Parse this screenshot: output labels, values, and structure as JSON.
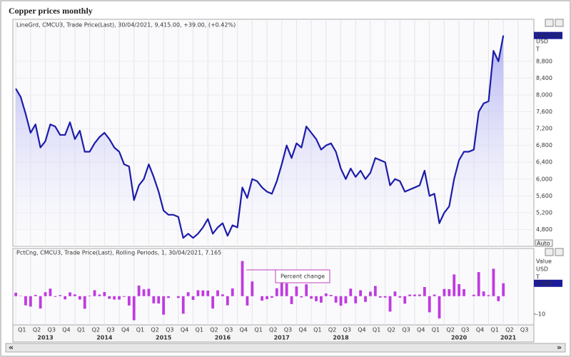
{
  "title": "Copper prices monthly",
  "chart_data": [
    {
      "type": "line",
      "legend": "LineGrd, CMCU3, Trade Price(Last), 30/04/2021, 9,415.00, +39.00, (+0.42%)",
      "last_value_label": "9,415.00",
      "axis_unit": "USD",
      "axis_unit2": "T",
      "button": "Auto",
      "color": "#1c1ca8",
      "values": [
        8150,
        7950,
        7550,
        7100,
        7300,
        6750,
        6900,
        7300,
        7250,
        7050,
        7050,
        7350,
        6950,
        7150,
        6650,
        6650,
        6850,
        7000,
        7100,
        6950,
        6750,
        6650,
        6350,
        6300,
        5500,
        5850,
        6000,
        6350,
        6050,
        5700,
        5250,
        5150,
        5150,
        5100,
        4600,
        4700,
        4600,
        4700,
        4850,
        5050,
        4700,
        4850,
        4950,
        4650,
        4900,
        4850,
        5800,
        5550,
        6000,
        5950,
        5800,
        5700,
        5650,
        5950,
        6350,
        6800,
        6500,
        6850,
        6750,
        7250,
        7100,
        6950,
        6700,
        6800,
        6850,
        6650,
        6250,
        6000,
        6250,
        6050,
        6200,
        6000,
        6150,
        6500,
        6450,
        6400,
        5850,
        6000,
        5950,
        5700,
        5750,
        5800,
        5850,
        6200,
        5600,
        5650,
        4950,
        5200,
        5350,
        6000,
        6450,
        6650,
        6650,
        6700,
        7600,
        7800,
        7850,
        9050,
        8800,
        9415
      ],
      "xlim": [
        -0.6,
        105.2
      ],
      "ylim": [
        4400,
        9800
      ],
      "yticks": [
        {
          "value": 4800,
          "label": "4,800"
        },
        {
          "value": 5200,
          "label": "5,200"
        },
        {
          "value": 5600,
          "label": "5,600"
        },
        {
          "value": 6000,
          "label": "6,000"
        },
        {
          "value": 6400,
          "label": "6,400"
        },
        {
          "value": 6800,
          "label": "6,800"
        },
        {
          "value": 7200,
          "label": "7,200"
        },
        {
          "value": 7600,
          "label": "7,600"
        },
        {
          "value": 8000,
          "label": "8,000"
        },
        {
          "value": 8400,
          "label": "8,400"
        },
        {
          "value": 8800,
          "label": "8,800"
        }
      ]
    },
    {
      "type": "bar",
      "legend": "PctCng, CMCU3, Trade Price(Last), Rolling Periods, 1, 30/04/2021, 7.165",
      "last_value_label": "7.165",
      "axis_title": "Value",
      "axis_unit": "USD",
      "axis_unit2": "T",
      "annotation": "Percent change",
      "color": "#c03ae0",
      "values": [
        1.9,
        0.2,
        -5.1,
        -5.8,
        0.7,
        -6.9,
        2.2,
        4.2,
        -0.4,
        0.6,
        -1.8,
        2.1,
        1.0,
        -1.9,
        -7.0,
        0.3,
        3.3,
        0.9,
        2.3,
        -1.5,
        -1.9,
        -1.9,
        -0.4,
        -5.2,
        -13.4,
        5.9,
        3.8,
        4.1,
        -4.0,
        -4.1,
        -10.3,
        -1.0,
        0,
        -1.0,
        -9.8,
        2.2,
        -2.1,
        3.3,
        3.2,
        3.1,
        -6.9,
        3.2,
        1.0,
        -5.1,
        4.3,
        0,
        19.6,
        -5.2,
        8.2,
        0,
        -2.5,
        -1.7,
        -0.9,
        4.4,
        7.6,
        7.1,
        -4.4,
        5.4,
        -0.7,
        6.6,
        -1.4,
        -2.8,
        -3.6,
        1.5,
        0.7,
        -3.6,
        -5.3,
        -4.0,
        4.2,
        -4.0,
        3.3,
        -3.2,
        2.5,
        5.7,
        -0.8,
        -0.8,
        -8.6,
        2.6,
        -0.8,
        -4.2,
        0.9,
        0.9,
        0.9,
        5.1,
        -9.0,
        0.9,
        -12.4,
        4.0,
        3.9,
        12.1,
        6.7,
        3.9,
        0,
        0.8,
        13.4,
        2.6,
        0.6,
        15.3,
        -2.8,
        7.165
      ],
      "xlim": [
        -0.6,
        105.2
      ],
      "ylim": [
        -16,
        21
      ],
      "yticks": [
        -10
      ],
      "xticks": [
        {
          "value": 0,
          "label": "Q1"
        },
        {
          "value": 3,
          "label": "Q2"
        },
        {
          "value": 6,
          "label": "Q3"
        },
        {
          "value": 9,
          "label": "Q4"
        },
        {
          "value": 12,
          "label": "Q1"
        },
        {
          "value": 15,
          "label": "Q2"
        },
        {
          "value": 18,
          "label": "Q3"
        },
        {
          "value": 21,
          "label": "Q4"
        },
        {
          "value": 24,
          "label": "Q1"
        },
        {
          "value": 27,
          "label": "Q2"
        },
        {
          "value": 30,
          "label": "Q3"
        },
        {
          "value": 33,
          "label": "Q4"
        },
        {
          "value": 36,
          "label": "Q1"
        },
        {
          "value": 39,
          "label": "Q2"
        },
        {
          "value": 42,
          "label": "Q3"
        },
        {
          "value": 45,
          "label": "Q4"
        },
        {
          "value": 48,
          "label": "Q1"
        },
        {
          "value": 51,
          "label": "Q2"
        },
        {
          "value": 54,
          "label": "Q3"
        },
        {
          "value": 57,
          "label": "Q4"
        },
        {
          "value": 60,
          "label": "Q1"
        },
        {
          "value": 63,
          "label": "Q2"
        },
        {
          "value": 66,
          "label": "Q3"
        },
        {
          "value": 69,
          "label": "Q4"
        },
        {
          "value": 72,
          "label": "Q1"
        },
        {
          "value": 75,
          "label": "Q2"
        },
        {
          "value": 78,
          "label": "Q3"
        },
        {
          "value": 81,
          "label": "Q4"
        },
        {
          "value": 84,
          "label": "Q1"
        },
        {
          "value": 87,
          "label": "Q2"
        },
        {
          "value": 90,
          "label": "Q3"
        },
        {
          "value": 93,
          "label": "Q4"
        },
        {
          "value": 96,
          "label": "Q1"
        },
        {
          "value": 99,
          "label": "Q2"
        },
        {
          "value": 102,
          "label": "Q3"
        }
      ],
      "year_ticks": [
        {
          "value": 6,
          "label": "2013"
        },
        {
          "value": 18,
          "label": "2014"
        },
        {
          "value": 30,
          "label": "2015"
        },
        {
          "value": 42,
          "label": "2016"
        },
        {
          "value": 54,
          "label": "2017"
        },
        {
          "value": 66,
          "label": "2018"
        },
        {
          "value": 90,
          "label": "2020"
        },
        {
          "value": 100,
          "label": "2021"
        }
      ]
    }
  ]
}
